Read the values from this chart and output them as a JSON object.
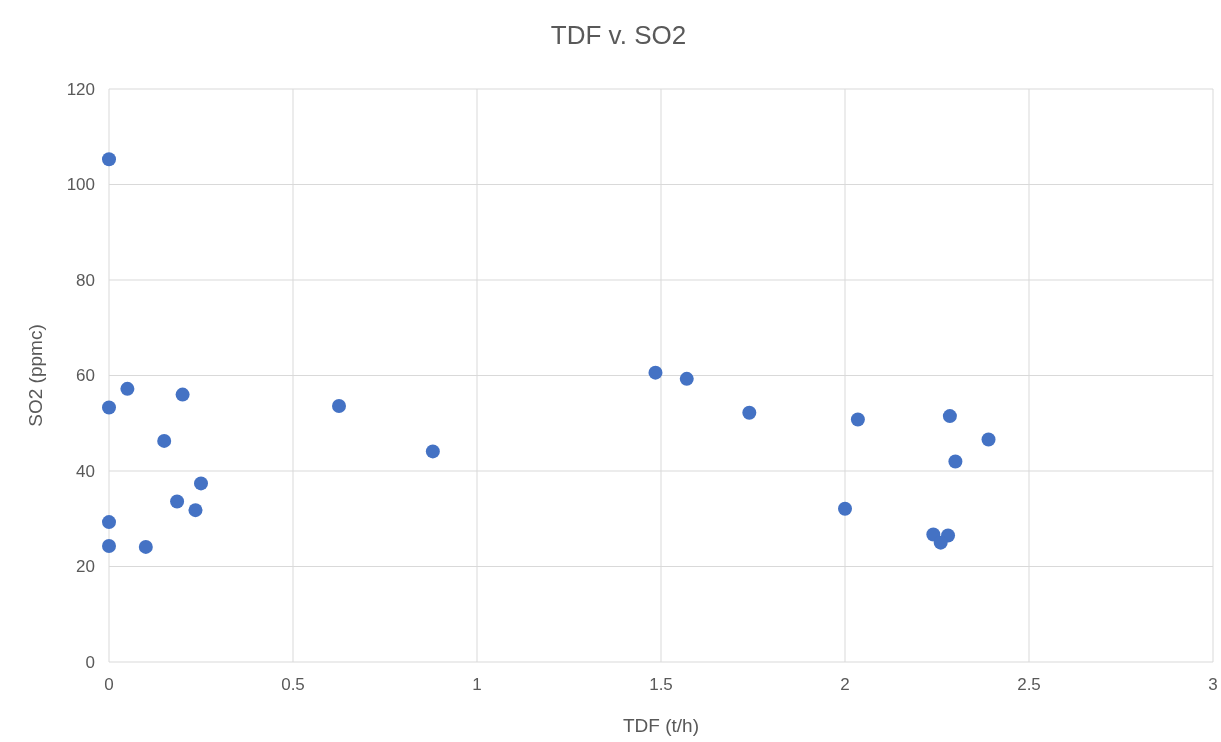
{
  "chart_data": {
    "type": "scatter",
    "title": "TDF v. SO2",
    "xlabel": "TDF (t/h)",
    "ylabel": "SO2 (ppmc)",
    "x": [
      0,
      0.05,
      0.2,
      0,
      0.15,
      0.25,
      0.185,
      0.235,
      0,
      0,
      0.1,
      0.625,
      0.88,
      1.485,
      1.57,
      1.74,
      2.0,
      2.035,
      2.285,
      2.39,
      2.3,
      2.24,
      2.28,
      2.26
    ],
    "values": [
      105.3,
      57.2,
      56,
      53.3,
      46.3,
      37.4,
      33.6,
      31.8,
      29.3,
      24.3,
      24.1,
      53.6,
      44.1,
      60.6,
      59.3,
      52.2,
      32.1,
      50.8,
      51.5,
      46.6,
      42,
      26.7,
      26.5,
      25
    ],
    "color": "#4472c4",
    "marker": "circle",
    "xlim": [
      0,
      3
    ],
    "xticks": [
      0,
      0.5,
      1,
      1.5,
      2,
      2.5,
      3
    ],
    "ylim": [
      0,
      120
    ],
    "yticks": [
      0,
      20,
      40,
      60,
      80,
      100,
      120
    ],
    "grid": true
  }
}
